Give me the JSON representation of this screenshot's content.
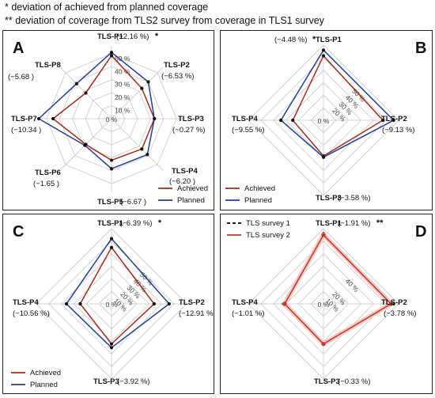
{
  "notes": {
    "line1": "* deviation of achieved from planned coverage",
    "line2": "** deviation of coverage from TLS2 survey from coverage in TLS1 survey"
  },
  "colors": {
    "achieved": "#a52a1a",
    "planned": "#1f3e99",
    "survey1": "#000000",
    "survey2": "#c0392b",
    "grid": "#c8c8c8",
    "fill_band": "#f4c9c4"
  },
  "chart_data": [
    {
      "panel": "A",
      "type": "radar",
      "axes": [
        "TLS-P1",
        "TLS-P2",
        "TLS-P3",
        "TLS-P4",
        "TLS-P5",
        "TLS-P6",
        "TLS-P7",
        "TLS-P8"
      ],
      "axis_deviations": [
        "(−2.16 %)",
        "(−6.53 %)",
        "(−0.27 %)",
        "(−6.20 )",
        "(−6.67 )",
        "(−1.65 )",
        "(−10.34 )",
        "(−5.68 )"
      ],
      "marks": [
        "*",
        "",
        "",
        "",
        "",
        "",
        "",
        ""
      ],
      "ticks": [
        "0 %",
        "10 %",
        "20 %",
        "30 %",
        "40 %",
        "50 %"
      ],
      "rmax": 56,
      "series": [
        {
          "name": "Achieved",
          "values": [
            48.5,
            33.0,
            33.0,
            33.0,
            32.0,
            28.0,
            45.0,
            28.0
          ]
        },
        {
          "name": "Planned",
          "values": [
            51.0,
            40.0,
            33.0,
            39.0,
            38.5,
            29.0,
            56.0,
            38.0
          ]
        }
      ]
    },
    {
      "panel": "B",
      "type": "radar",
      "axes": [
        "TLS-P1",
        "TLS-P2",
        "TLS-P3",
        "TLS-P4"
      ],
      "axis_deviations": [
        "(−4.48 %)",
        "(−9.13 %)",
        "(−3.58 %)",
        "(−9.55 %)"
      ],
      "marks": [
        "*",
        "",
        "",
        ""
      ],
      "ticks": [
        "0 %",
        "20 %",
        "30 %",
        "40 %",
        "50 %"
      ],
      "rmax": 60,
      "series": [
        {
          "name": "Achieved",
          "values": [
            51.5,
            47.5,
            28.5,
            24.5
          ]
        },
        {
          "name": "Planned",
          "values": [
            56.0,
            56.0,
            29.5,
            34.0
          ]
        }
      ]
    },
    {
      "panel": "C",
      "type": "radar",
      "axes": [
        "TLS-P1",
        "TLS-P2",
        "TLS-P3",
        "TLS-P4"
      ],
      "axis_deviations": [
        "(−6.39 %)",
        "(−12.91 %)",
        "(−3.92 %)",
        "(−10.56 %)"
      ],
      "marks": [
        "*",
        "",
        "",
        ""
      ],
      "ticks": [
        "0 %",
        "10 %",
        "20 %",
        "30 %",
        "40 %",
        "50 %"
      ],
      "rmax": 60,
      "series": [
        {
          "name": "Achieved",
          "values": [
            45.0,
            34.0,
            32.0,
            25.0
          ]
        },
        {
          "name": "Planned",
          "values": [
            52.0,
            46.0,
            35.0,
            36.0
          ]
        }
      ]
    },
    {
      "panel": "D",
      "type": "radar",
      "axes": [
        "TLS-P1",
        "TLS-P2",
        "TLS-P3",
        "TLS-P4"
      ],
      "axis_deviations": [
        "(−1.91 %)",
        "(−3.78 %)",
        "(−0.33 %)",
        "(−1.01 %)"
      ],
      "marks": [
        "**",
        "",
        "",
        ""
      ],
      "ticks": [
        "0 %",
        "10 %",
        "20 %",
        "40 %"
      ],
      "rmax": 60,
      "series": [
        {
          "name": "TLS survey 1",
          "values": [
            56.0,
            56.0,
            32.0,
            32.0
          ]
        },
        {
          "name": "TLS survey 2",
          "values": [
            55.0,
            54.0,
            32.0,
            31.0
          ]
        }
      ]
    }
  ]
}
